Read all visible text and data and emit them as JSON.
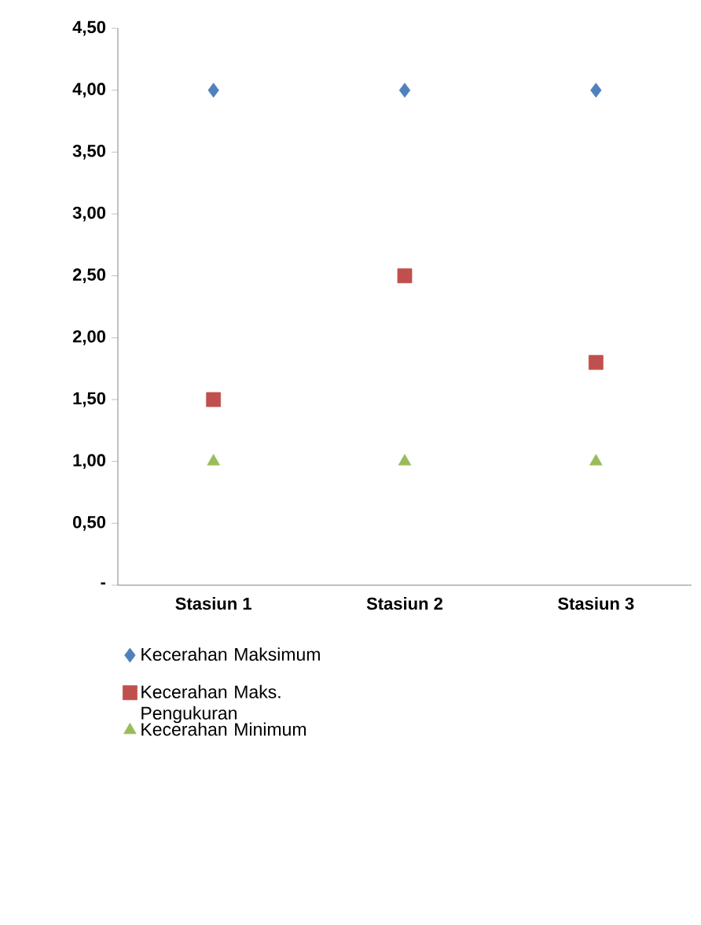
{
  "chart_data": {
    "type": "scatter",
    "categories": [
      "Stasiun 1",
      "Stasiun 2",
      "Stasiun 3"
    ],
    "series": [
      {
        "name": "Kecerahan Maksimum",
        "color": "#4f81bd",
        "marker": "diamond",
        "values": [
          4,
          4,
          4
        ]
      },
      {
        "name": "Kecerahan Maks. Pengukuran",
        "color": "#c0504d",
        "marker": "square",
        "values": [
          1.5,
          2.5,
          1.8
        ]
      },
      {
        "name": "Kecerahan Minimum",
        "color": "#9bbb59",
        "marker": "triangle",
        "values": [
          1,
          1,
          1
        ]
      }
    ],
    "ylim": [
      0,
      4.5
    ],
    "yticks": [
      {
        "value": 0,
        "label": "-"
      },
      {
        "value": 0.5,
        "label": "0,50"
      },
      {
        "value": 1,
        "label": "1,00"
      },
      {
        "value": 1.5,
        "label": "1,50"
      },
      {
        "value": 2,
        "label": "2,00"
      },
      {
        "value": 2.5,
        "label": "2,50"
      },
      {
        "value": 3,
        "label": "3,00"
      },
      {
        "value": 3.5,
        "label": "3,50"
      },
      {
        "value": 4,
        "label": "4,00"
      },
      {
        "value": 4.5,
        "label": "4,50"
      }
    ],
    "grid": false,
    "legend": "bottom"
  }
}
